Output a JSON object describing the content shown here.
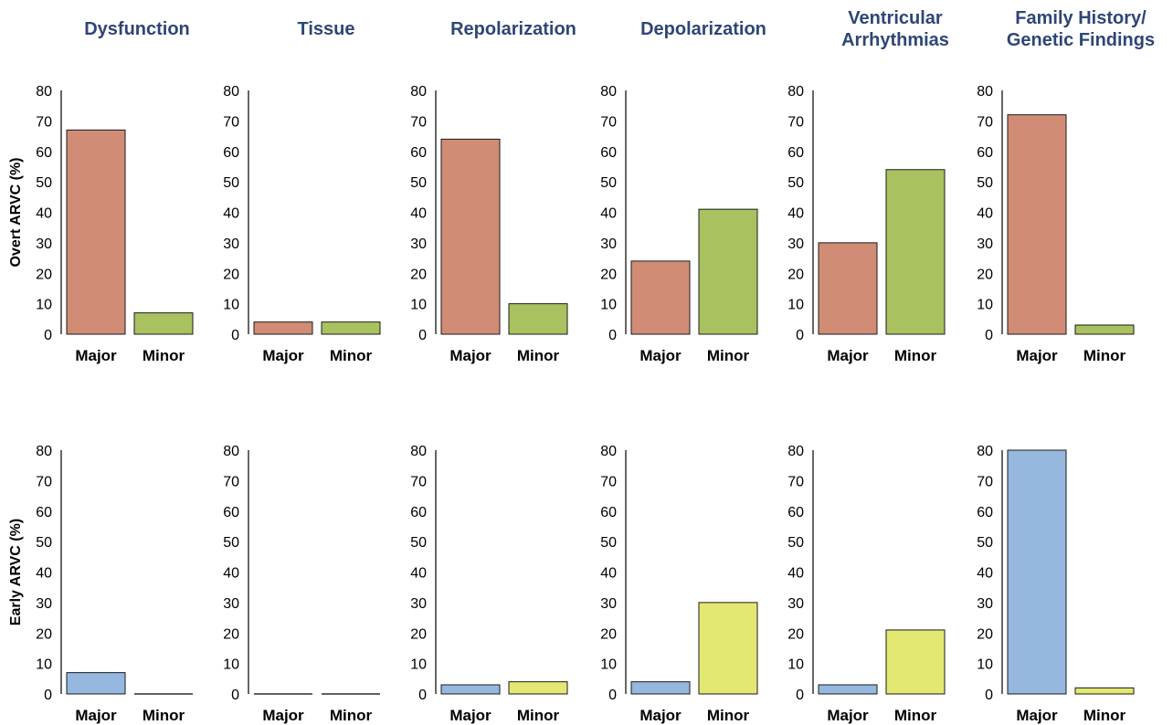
{
  "colors": {
    "overt_major": "#d18c75",
    "overt_minor": "#a9c25f",
    "early_major": "#96b8df",
    "early_minor": "#e3e872",
    "title": "#2e4676"
  },
  "column_titles": [
    [
      "Dysfunction"
    ],
    [
      "Tissue"
    ],
    [
      "Repolarization"
    ],
    [
      "Depolarization"
    ],
    [
      "Ventricular",
      "Arrhythmias"
    ],
    [
      "Family History/",
      "Genetic Findings"
    ]
  ],
  "row_labels": [
    "Overt ARVC (%)",
    "Early ARVC (%)"
  ],
  "chart_data": [
    {
      "type": "bar",
      "panel": "Overt ARVC - Dysfunction",
      "categories": [
        "Major",
        "Minor"
      ],
      "values": [
        67,
        7
      ],
      "ylim": [
        0,
        80
      ],
      "yticks": [
        0,
        10,
        20,
        30,
        40,
        50,
        60,
        70,
        80
      ],
      "ylabel": "Overt ARVC (%)",
      "title": "Dysfunction"
    },
    {
      "type": "bar",
      "panel": "Overt ARVC - Tissue",
      "categories": [
        "Major",
        "Minor"
      ],
      "values": [
        4,
        4
      ],
      "ylim": [
        0,
        80
      ],
      "yticks": [
        0,
        10,
        20,
        30,
        40,
        50,
        60,
        70,
        80
      ],
      "title": "Tissue"
    },
    {
      "type": "bar",
      "panel": "Overt ARVC - Repolarization",
      "categories": [
        "Major",
        "Minor"
      ],
      "values": [
        64,
        10
      ],
      "ylim": [
        0,
        80
      ],
      "yticks": [
        0,
        10,
        20,
        30,
        40,
        50,
        60,
        70,
        80
      ],
      "title": "Repolarization"
    },
    {
      "type": "bar",
      "panel": "Overt ARVC - Depolarization",
      "categories": [
        "Major",
        "Minor"
      ],
      "values": [
        24,
        41
      ],
      "ylim": [
        0,
        80
      ],
      "yticks": [
        0,
        10,
        20,
        30,
        40,
        50,
        60,
        70,
        80
      ],
      "title": "Depolarization"
    },
    {
      "type": "bar",
      "panel": "Overt ARVC - Ventricular Arrhythmias",
      "categories": [
        "Major",
        "Minor"
      ],
      "values": [
        30,
        54
      ],
      "ylim": [
        0,
        80
      ],
      "yticks": [
        0,
        10,
        20,
        30,
        40,
        50,
        60,
        70,
        80
      ],
      "title": "Ventricular Arrhythmias"
    },
    {
      "type": "bar",
      "panel": "Overt ARVC - Family History/Genetic Findings",
      "categories": [
        "Major",
        "Minor"
      ],
      "values": [
        72,
        3
      ],
      "ylim": [
        0,
        80
      ],
      "yticks": [
        0,
        10,
        20,
        30,
        40,
        50,
        60,
        70,
        80
      ],
      "title": "Family History/ Genetic Findings"
    },
    {
      "type": "bar",
      "panel": "Early ARVC - Dysfunction",
      "categories": [
        "Major",
        "Minor"
      ],
      "values": [
        7,
        0
      ],
      "ylim": [
        0,
        80
      ],
      "yticks": [
        0,
        10,
        20,
        30,
        40,
        50,
        60,
        70,
        80
      ],
      "ylabel": "Early ARVC (%)"
    },
    {
      "type": "bar",
      "panel": "Early ARVC - Tissue",
      "categories": [
        "Major",
        "Minor"
      ],
      "values": [
        0,
        0
      ],
      "ylim": [
        0,
        80
      ],
      "yticks": [
        0,
        10,
        20,
        30,
        40,
        50,
        60,
        70,
        80
      ]
    },
    {
      "type": "bar",
      "panel": "Early ARVC - Repolarization",
      "categories": [
        "Major",
        "Minor"
      ],
      "values": [
        3,
        4
      ],
      "ylim": [
        0,
        80
      ],
      "yticks": [
        0,
        10,
        20,
        30,
        40,
        50,
        60,
        70,
        80
      ]
    },
    {
      "type": "bar",
      "panel": "Early ARVC - Depolarization",
      "categories": [
        "Major",
        "Minor"
      ],
      "values": [
        4,
        30
      ],
      "ylim": [
        0,
        80
      ],
      "yticks": [
        0,
        10,
        20,
        30,
        40,
        50,
        60,
        70,
        80
      ]
    },
    {
      "type": "bar",
      "panel": "Early ARVC - Ventricular Arrhythmias",
      "categories": [
        "Major",
        "Minor"
      ],
      "values": [
        3,
        21
      ],
      "ylim": [
        0,
        80
      ],
      "yticks": [
        0,
        10,
        20,
        30,
        40,
        50,
        60,
        70,
        80
      ]
    },
    {
      "type": "bar",
      "panel": "Early ARVC - Family History/Genetic Findings",
      "categories": [
        "Major",
        "Minor"
      ],
      "values": [
        80,
        2
      ],
      "ylim": [
        0,
        80
      ],
      "yticks": [
        0,
        10,
        20,
        30,
        40,
        50,
        60,
        70,
        80
      ]
    }
  ]
}
